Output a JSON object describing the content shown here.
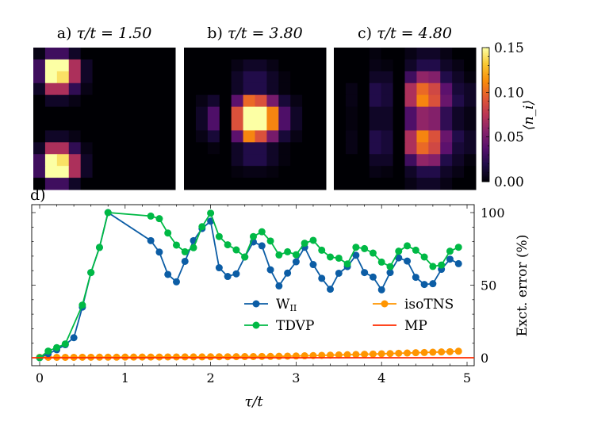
{
  "chart_data": [
    {
      "type": "heatmap",
      "panel_label": "a)",
      "title": "τ/t = 1.50",
      "colormap": "inferno",
      "grid": [
        [
          0.005,
          0.03,
          0.03,
          0.01,
          0,
          0,
          0,
          0,
          0,
          0,
          0,
          0
        ],
        [
          0.03,
          0.15,
          0.15,
          0.07,
          0.01,
          0,
          0,
          0,
          0,
          0,
          0,
          0
        ],
        [
          0.03,
          0.15,
          0.14,
          0.07,
          0.01,
          0,
          0,
          0,
          0,
          0,
          0,
          0
        ],
        [
          0.01,
          0.07,
          0.07,
          0.025,
          0.005,
          0,
          0,
          0,
          0,
          0,
          0,
          0
        ],
        [
          0,
          0.01,
          0.01,
          0.005,
          0,
          0,
          0,
          0,
          0,
          0,
          0,
          0
        ],
        [
          0,
          0,
          0,
          0,
          0,
          0,
          0,
          0,
          0,
          0,
          0,
          0
        ],
        [
          0,
          0,
          0,
          0,
          0,
          0,
          0,
          0,
          0,
          0,
          0,
          0
        ],
        [
          0,
          0.01,
          0.01,
          0.005,
          0,
          0,
          0,
          0,
          0,
          0,
          0,
          0
        ],
        [
          0.01,
          0.07,
          0.07,
          0.025,
          0.005,
          0,
          0,
          0,
          0,
          0,
          0,
          0
        ],
        [
          0.03,
          0.15,
          0.14,
          0.07,
          0.01,
          0,
          0,
          0,
          0,
          0,
          0,
          0
        ],
        [
          0.03,
          0.15,
          0.15,
          0.07,
          0.01,
          0,
          0,
          0,
          0,
          0,
          0,
          0
        ],
        [
          0,
          0.03,
          0.03,
          0.01,
          0,
          0,
          0,
          0,
          0,
          0,
          0,
          0
        ]
      ]
    },
    {
      "type": "heatmap",
      "panel_label": "b)",
      "title": "τ/t = 3.80",
      "colormap": "inferno",
      "grid": [
        [
          0,
          0,
          0,
          0,
          0,
          0,
          0,
          0,
          0,
          0,
          0,
          0
        ],
        [
          0,
          0,
          0,
          0,
          0.005,
          0.01,
          0.01,
          0.005,
          0,
          0,
          0,
          0
        ],
        [
          0,
          0,
          0,
          0,
          0.01,
          0.02,
          0.02,
          0.01,
          0.003,
          0,
          0,
          0
        ],
        [
          0,
          0,
          0,
          0,
          0.01,
          0.02,
          0.02,
          0.01,
          0.003,
          0,
          0,
          0
        ],
        [
          0,
          0.005,
          0.012,
          0,
          0.04,
          0.1,
          0.09,
          0.05,
          0.015,
          0.005,
          0,
          0
        ],
        [
          0,
          0.01,
          0.035,
          0,
          0.09,
          0.15,
          0.15,
          0.11,
          0.035,
          0.01,
          0,
          0
        ],
        [
          0,
          0.01,
          0.035,
          0,
          0.09,
          0.15,
          0.15,
          0.11,
          0.035,
          0.01,
          0,
          0
        ],
        [
          0,
          0.005,
          0.015,
          0,
          0.04,
          0.11,
          0.09,
          0.05,
          0.015,
          0.005,
          0,
          0
        ],
        [
          0,
          0,
          0.003,
          0,
          0.01,
          0.02,
          0.02,
          0.01,
          0.003,
          0,
          0,
          0
        ],
        [
          0,
          0,
          0,
          0,
          0.01,
          0.02,
          0.02,
          0.01,
          0.003,
          0,
          0,
          0
        ],
        [
          0,
          0,
          0,
          0,
          0.003,
          0.005,
          0.005,
          0.003,
          0,
          0,
          0,
          0
        ],
        [
          0,
          0,
          0,
          0,
          0,
          0,
          0,
          0,
          0,
          0,
          0,
          0
        ]
      ]
    },
    {
      "type": "heatmap",
      "panel_label": "c)",
      "title": "τ/t = 4.80",
      "colormap": "inferno",
      "grid": [
        [
          0,
          0,
          0,
          0.003,
          0,
          0,
          0.005,
          0.01,
          0.01,
          0.005,
          0,
          0
        ],
        [
          0,
          0,
          0,
          0.005,
          0.003,
          0,
          0.01,
          0.02,
          0.02,
          0.01,
          0.005,
          0
        ],
        [
          0,
          0,
          0,
          0.01,
          0.01,
          0,
          0.03,
          0.06,
          0.055,
          0.02,
          0.01,
          0.003
        ],
        [
          0,
          0.005,
          0,
          0.02,
          0.015,
          0,
          0.07,
          0.1,
          0.085,
          0.04,
          0.015,
          0.01
        ],
        [
          0,
          0.005,
          0,
          0.02,
          0.015,
          0,
          0.07,
          0.11,
          0.09,
          0.045,
          0.02,
          0.01
        ],
        [
          0,
          0.003,
          0,
          0.01,
          0.01,
          0,
          0.035,
          0.06,
          0.055,
          0.025,
          0.01,
          0.005
        ],
        [
          0,
          0.003,
          0,
          0.01,
          0.01,
          0,
          0.035,
          0.06,
          0.055,
          0.025,
          0.01,
          0.005
        ],
        [
          0,
          0.005,
          0,
          0.02,
          0.015,
          0,
          0.07,
          0.11,
          0.09,
          0.045,
          0.02,
          0.01
        ],
        [
          0,
          0.005,
          0,
          0.02,
          0.015,
          0,
          0.07,
          0.1,
          0.085,
          0.04,
          0.015,
          0.01
        ],
        [
          0,
          0,
          0,
          0.01,
          0.01,
          0,
          0.03,
          0.06,
          0.055,
          0.02,
          0.01,
          0.003
        ],
        [
          0,
          0,
          0,
          0.005,
          0.003,
          0,
          0.01,
          0.02,
          0.02,
          0.01,
          0.005,
          0
        ],
        [
          0,
          0,
          0,
          0,
          0,
          0,
          0.005,
          0.01,
          0.01,
          0.005,
          0,
          0
        ]
      ]
    },
    {
      "type": "colorbar",
      "label": "⟨n_i⟩",
      "range": [
        0,
        0.15
      ],
      "ticks": [
        "0.00",
        "0.05",
        "0.10",
        "0.15"
      ],
      "tick_values": [
        0,
        0.05,
        0.1,
        0.15
      ],
      "colormap": "inferno"
    },
    {
      "type": "line",
      "panel_label": "d)",
      "xlabel": "τ/t",
      "ylabel": "Exct. error (%)",
      "xlim": [
        -0.1,
        5.1
      ],
      "ylim": [
        -5,
        105
      ],
      "xticks": [
        0,
        1,
        2,
        3,
        4,
        5
      ],
      "xtick_labels": [
        "0",
        "1",
        "2",
        "3",
        "4",
        "5"
      ],
      "yticks": [
        0,
        50,
        100
      ],
      "ytick_labels": [
        "0",
        "50",
        "100"
      ],
      "yaxis_side": "right",
      "grid": false,
      "legend_placement": "lower-right",
      "series": [
        {
          "name": "W_II",
          "label_main": "W",
          "label_sub": "II",
          "color": "#0C5DA5",
          "marker": "circle",
          "x": [
            0,
            0.1,
            0.2,
            0.3,
            0.4,
            0.5,
            0.6,
            0.7,
            0.8,
            1.3,
            1.4,
            1.5,
            1.6,
            1.7,
            1.8,
            1.9,
            2.0,
            2.1,
            2.2,
            2.3,
            2.4,
            2.5,
            2.6,
            2.7,
            2.8,
            2.9,
            3.0,
            3.1,
            3.2,
            3.3,
            3.4,
            3.5,
            3.6,
            3.7,
            3.8,
            3.9,
            4.0,
            4.1,
            4.2,
            4.3,
            4.4,
            4.5,
            4.6,
            4.7,
            4.8,
            4.9
          ],
          "y": [
            0,
            2.8,
            5.5,
            9,
            13.8,
            34.9,
            58.7,
            76,
            100,
            80.7,
            72.8,
            57.4,
            52.3,
            66.4,
            80.7,
            89,
            94.1,
            62,
            56,
            57.8,
            69.4,
            79.8,
            77.1,
            60.6,
            49.5,
            58.3,
            66.1,
            76.1,
            64.2,
            54.7,
            47.2,
            58.2,
            62.8,
            70.6,
            58.7,
            55.6,
            46.8,
            58.7,
            68.8,
            66.6,
            55.4,
            50.5,
            51,
            60.9,
            67.9,
            64.8
          ]
        },
        {
          "name": "TDVP",
          "label_main": "TDVP",
          "label_sub": "",
          "color": "#00B945",
          "marker": "circle",
          "x": [
            0,
            0.1,
            0.2,
            0.3,
            0.5,
            0.6,
            0.7,
            0.8,
            1.3,
            1.4,
            1.5,
            1.6,
            1.7,
            1.8,
            1.9,
            2.0,
            2.1,
            2.2,
            2.3,
            2.4,
            2.5,
            2.6,
            2.7,
            2.8,
            2.9,
            3.0,
            3.1,
            3.2,
            3.3,
            3.4,
            3.5,
            3.6,
            3.7,
            3.8,
            3.9,
            4.0,
            4.1,
            4.2,
            4.3,
            4.4,
            4.5,
            4.6,
            4.7,
            4.8,
            4.9
          ],
          "y": [
            0,
            4.6,
            7,
            9.5,
            36.3,
            58.7,
            76,
            100,
            97.6,
            95.8,
            85.9,
            77.6,
            73,
            75.8,
            90.3,
            99.6,
            83.5,
            77.8,
            74.3,
            69.4,
            83.5,
            86.8,
            80.4,
            70.8,
            73,
            71,
            78.9,
            80.9,
            74.1,
            69.4,
            68.6,
            64.6,
            76.1,
            75.2,
            72.1,
            65.9,
            62.8,
            73.4,
            77.1,
            74.1,
            69.4,
            62.9,
            63.9,
            73.4,
            76.1
          ]
        },
        {
          "name": "isoTNS",
          "label_main": "isoTNS",
          "label_sub": "",
          "color": "#FF9500",
          "marker": "circle",
          "x": [
            0,
            0.1,
            0.2,
            0.3,
            0.4,
            0.5,
            0.6,
            0.7,
            0.8,
            0.9,
            1.0,
            1.1,
            1.2,
            1.3,
            1.4,
            1.5,
            1.6,
            1.7,
            1.8,
            1.9,
            2.0,
            2.1,
            2.2,
            2.3,
            2.4,
            2.5,
            2.6,
            2.7,
            2.8,
            2.9,
            3.0,
            3.1,
            3.2,
            3.3,
            3.4,
            3.5,
            3.6,
            3.7,
            3.8,
            3.9,
            4.0,
            4.1,
            4.2,
            4.3,
            4.4,
            4.5,
            4.6,
            4.7,
            4.8,
            4.9
          ],
          "y": [
            0.3,
            0.3,
            0.3,
            0.3,
            0.3,
            0.35,
            0.35,
            0.4,
            0.4,
            0.4,
            0.45,
            0.45,
            0.5,
            0.5,
            0.5,
            0.55,
            0.55,
            0.6,
            0.6,
            0.6,
            0.65,
            0.7,
            0.7,
            0.75,
            0.8,
            0.85,
            0.9,
            0.95,
            1.0,
            1.1,
            1.2,
            1.35,
            1.5,
            1.65,
            1.8,
            1.95,
            2.1,
            2.25,
            2.4,
            2.55,
            2.75,
            2.9,
            3.1,
            3.25,
            3.45,
            3.6,
            3.8,
            4.0,
            4.2,
            4.5
          ]
        },
        {
          "name": "MP",
          "label_main": "MP",
          "label_sub": "",
          "color": "#FF2C00",
          "marker": "none",
          "x": [
            -0.1,
            5.1
          ],
          "y": [
            0,
            0
          ]
        }
      ]
    }
  ]
}
